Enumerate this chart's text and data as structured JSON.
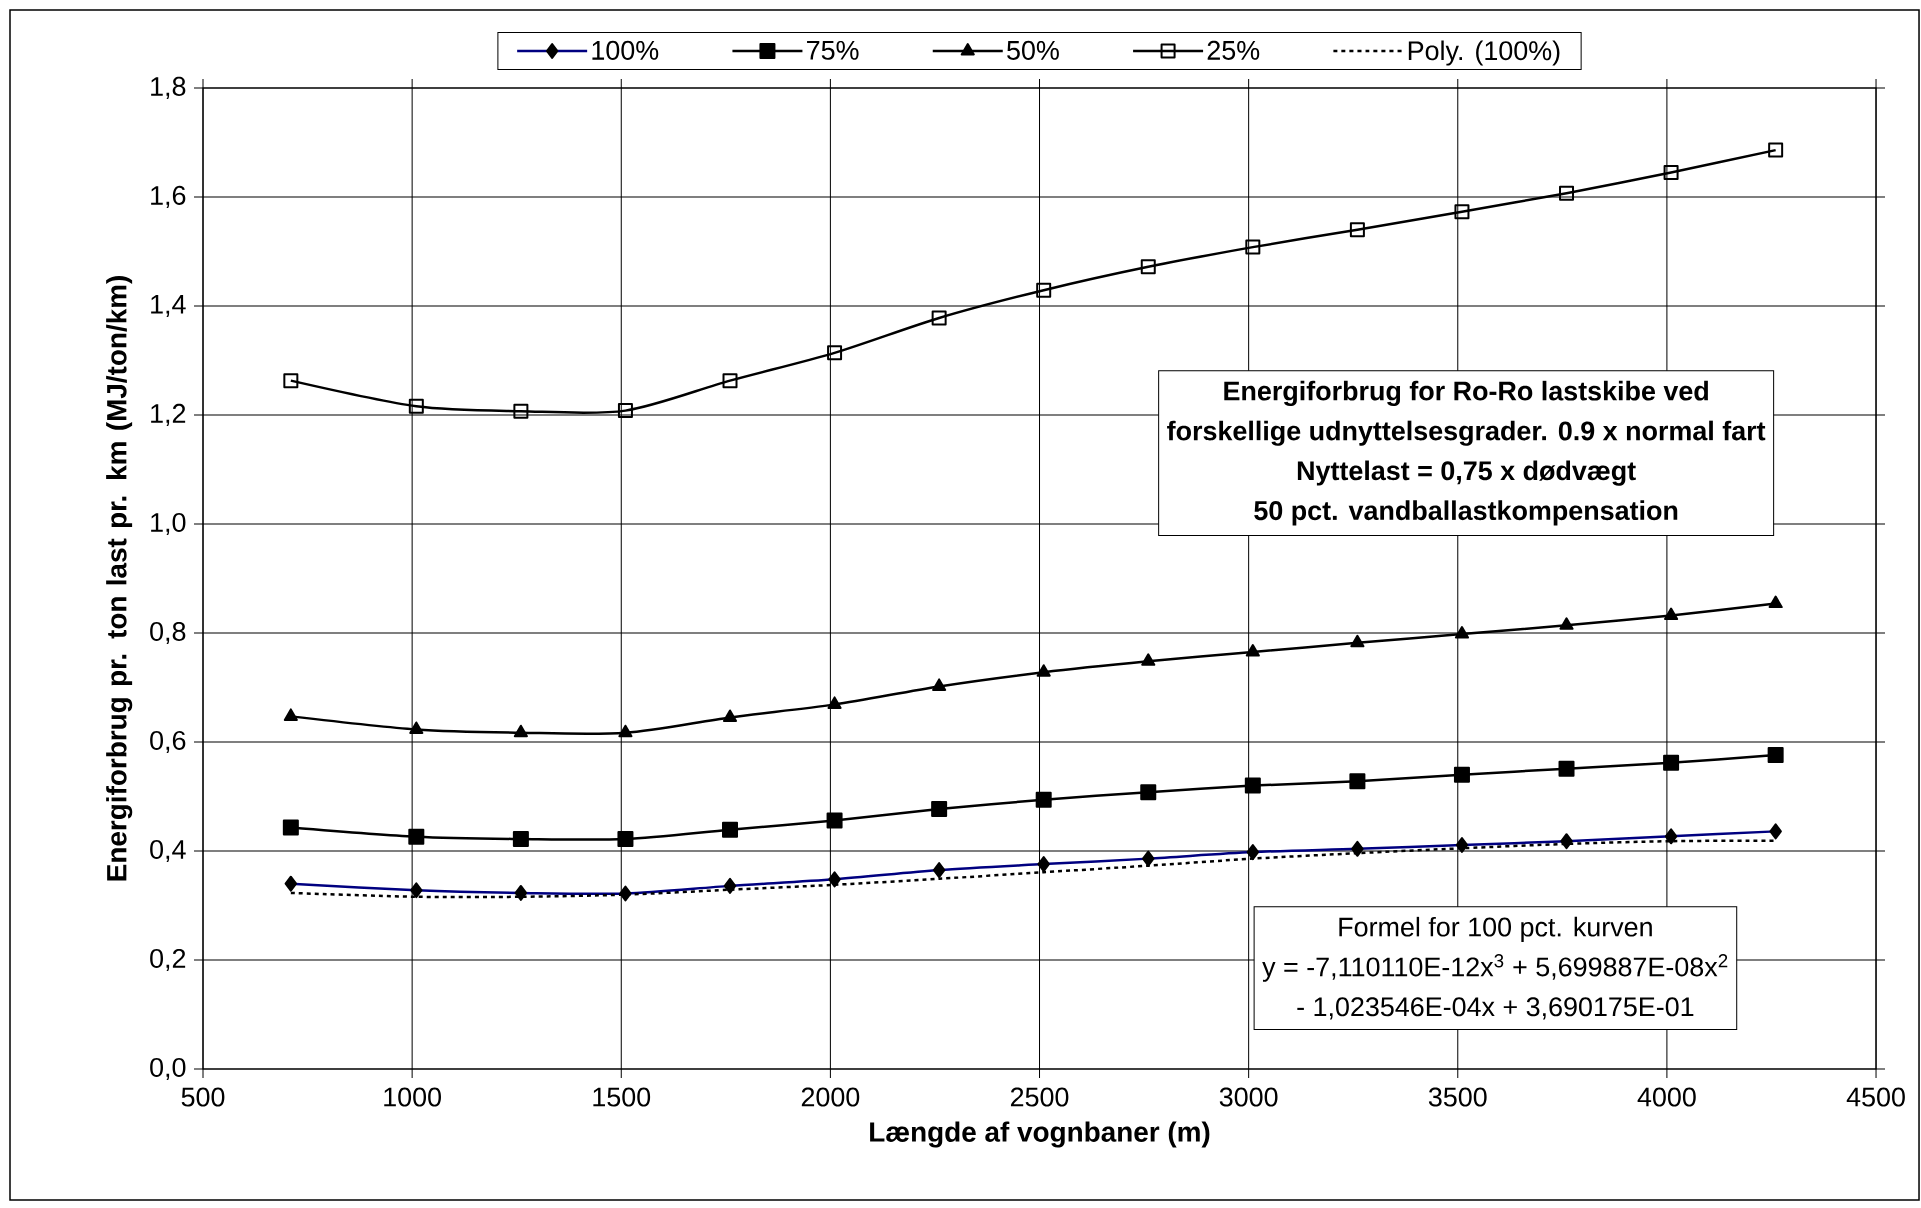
{
  "chart_data": {
    "type": "line",
    "xlabel": "Længde af vognbaner (m)",
    "ylabel": "Energiforbrug pr. ton last pr. km (MJ/ton/km)",
    "x": [
      710,
      1010,
      1260,
      1510,
      1760,
      2010,
      2260,
      2510,
      2760,
      3010,
      3260,
      3510,
      3760,
      4010,
      4260
    ],
    "series": [
      {
        "name": "100%",
        "color": "#000080",
        "marker": "diamond",
        "line_style": "solid",
        "values": [
          0.34,
          0.328,
          0.323,
          0.322,
          0.336,
          0.348,
          0.365,
          0.376,
          0.386,
          0.398,
          0.404,
          0.411,
          0.418,
          0.427,
          0.436
        ]
      },
      {
        "name": "75%",
        "color": "#000000",
        "marker": "square",
        "line_style": "solid",
        "values": [
          0.443,
          0.426,
          0.422,
          0.422,
          0.439,
          0.456,
          0.477,
          0.494,
          0.508,
          0.52,
          0.528,
          0.54,
          0.551,
          0.562,
          0.576
        ]
      },
      {
        "name": "50%",
        "color": "#000000",
        "marker": "triangle",
        "line_style": "solid",
        "values": [
          0.647,
          0.623,
          0.617,
          0.617,
          0.645,
          0.669,
          0.702,
          0.728,
          0.748,
          0.765,
          0.782,
          0.798,
          0.814,
          0.832,
          0.854
        ]
      },
      {
        "name": "25%",
        "color": "#000000",
        "marker": "square",
        "line_style": "solid",
        "values": [
          1.263,
          1.216,
          1.207,
          1.208,
          1.263,
          1.314,
          1.378,
          1.429,
          1.472,
          1.508,
          1.54,
          1.573,
          1.607,
          1.645,
          1.686
        ]
      },
      {
        "name": "Poly. (100%)",
        "type": "line",
        "color": "#000000",
        "marker": "none",
        "line_style": "dotted",
        "values": [
          0.323,
          0.316,
          0.316,
          0.32,
          0.329,
          0.338,
          0.349,
          0.361,
          0.373,
          0.386,
          0.396,
          0.405,
          0.413,
          0.418,
          0.419
        ]
      }
    ],
    "xlim": [
      500,
      4500
    ],
    "xticks": [
      500,
      1000,
      1500,
      2000,
      2500,
      3000,
      3500,
      4000,
      4500
    ],
    "ylim": [
      0,
      1.8
    ],
    "yticks": [
      {
        "value": 0,
        "label": "0,0"
      },
      {
        "value": 0.2,
        "label": "0,2"
      },
      {
        "value": 0.4,
        "label": "0,4"
      },
      {
        "value": 0.6,
        "label": "0,6"
      },
      {
        "value": 0.8,
        "label": "0,8"
      },
      {
        "value": 1.0,
        "label": "1,0"
      },
      {
        "value": 1.2,
        "label": "1,2"
      },
      {
        "value": 1.4,
        "label": "1,4"
      },
      {
        "value": 1.6,
        "label": "1,6"
      },
      {
        "value": 1.8,
        "label": "1,8"
      }
    ],
    "grid": true,
    "legend": "top",
    "annotations": [
      "Energiforbrug for Ro-Ro lastskibe ved",
      "forskellige udnyttelsesgrader. 0.9 x normal fart",
      "Nyttelast = 0,75 x dødvægt",
      "50 pct. vandballastkompensation",
      "Formel for 100 pct. kurven",
      "y = -7,110110E-12x$^{3}$ + 5,699887E-08x$^{2}$",
      "- 1,023546E-04x + 3,690175E-01"
    ]
  }
}
